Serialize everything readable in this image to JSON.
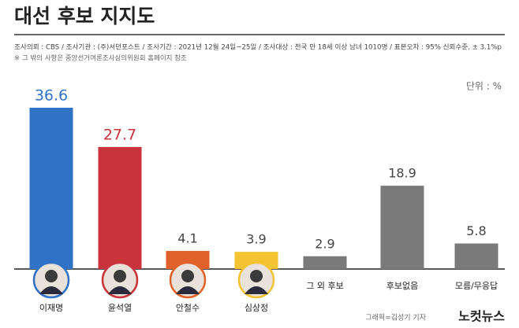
{
  "chart_data": {
    "type": "bar",
    "title": "대선 후보 지지도",
    "subtitle": "조사의뢰 : CBS / 조사기관 : (주)서던포스트 / 조사기간 : 2021년 12월 24일~25일 / 조사대상 : 전국 만 18세 이상 남녀 1010명 / 표본오차 : 95% 신뢰수준, ± 3.1%p",
    "note": "※ 그 밖의 사항은 중앙선거여론조사심의위원회 홈페이지 참조",
    "unit": "단위 : %",
    "credit": "그래픽=김성기 기자",
    "logo": "노컷뉴스",
    "categories": [
      "이재명",
      "윤석열",
      "안철수",
      "심상정",
      "그 외 후보",
      "후보없음",
      "모름/무응답"
    ],
    "values": [
      36.6,
      27.7,
      4.1,
      3.9,
      2.9,
      18.9,
      5.8
    ],
    "colors": [
      "#2f72c6",
      "#c9333b",
      "#e0622a",
      "#f3c332",
      "#7a7a7a",
      "#7a7a7a",
      "#7a7a7a"
    ],
    "label_colors": [
      "#2f72c6",
      "#c9333b",
      "#444444",
      "#444444",
      "#444444",
      "#444444",
      "#444444"
    ]
  }
}
